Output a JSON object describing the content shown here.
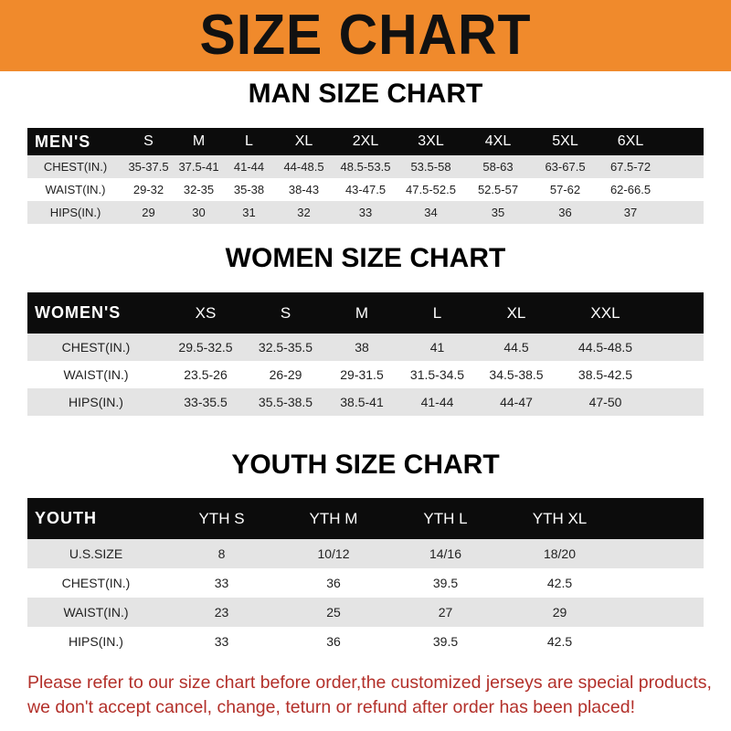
{
  "title": "SIZE CHART",
  "colors": {
    "banner": "#f08a2c",
    "header_row": "#0c0c0c",
    "stripe": "#e4e4e4",
    "notice": "#b3302a"
  },
  "men": {
    "title": "MAN SIZE CHART",
    "header": "MEN'S",
    "sizes": [
      "S",
      "M",
      "L",
      "XL",
      "2XL",
      "3XL",
      "4XL",
      "5XL",
      "6XL"
    ],
    "rows": [
      {
        "label": "CHEST(IN.)",
        "values": [
          "35-37.5",
          "37.5-41",
          "41-44",
          "44-48.5",
          "48.5-53.5",
          "53.5-58",
          "58-63",
          "63-67.5",
          "67.5-72"
        ]
      },
      {
        "label": "WAIST(IN.)",
        "values": [
          "29-32",
          "32-35",
          "35-38",
          "38-43",
          "43-47.5",
          "47.5-52.5",
          "52.5-57",
          "57-62",
          "62-66.5"
        ]
      },
      {
        "label": "HIPS(IN.)",
        "values": [
          "29",
          "30",
          "31",
          "32",
          "33",
          "34",
          "35",
          "36",
          "37"
        ]
      }
    ]
  },
  "women": {
    "title": "WOMEN SIZE CHART",
    "header": "WOMEN'S",
    "sizes": [
      "XS",
      "S",
      "M",
      "L",
      "XL",
      "XXL"
    ],
    "rows": [
      {
        "label": "CHEST(IN.)",
        "values": [
          "29.5-32.5",
          "32.5-35.5",
          "38",
          "41",
          "44.5",
          "44.5-48.5"
        ]
      },
      {
        "label": "WAIST(IN.)",
        "values": [
          "23.5-26",
          "26-29",
          "29-31.5",
          "31.5-34.5",
          "34.5-38.5",
          "38.5-42.5"
        ]
      },
      {
        "label": "HIPS(IN.)",
        "values": [
          "33-35.5",
          "35.5-38.5",
          "38.5-41",
          "41-44",
          "44-47",
          "47-50"
        ]
      }
    ]
  },
  "youth": {
    "title": "YOUTH SIZE CHART",
    "header": "YOUTH",
    "sizes": [
      "YTH S",
      "YTH M",
      "YTH L",
      "YTH XL"
    ],
    "rows": [
      {
        "label": "U.S.SIZE",
        "values": [
          "8",
          "10/12",
          "14/16",
          "18/20"
        ]
      },
      {
        "label": "CHEST(IN.)",
        "values": [
          "33",
          "36",
          "39.5",
          "42.5"
        ]
      },
      {
        "label": "WAIST(IN.)",
        "values": [
          "23",
          "25",
          "27",
          "29"
        ]
      },
      {
        "label": "HIPS(IN.)",
        "values": [
          "33",
          "36",
          "39.5",
          "42.5"
        ]
      }
    ]
  },
  "notice": [
    "Please refer to our size chart before order,the customized jerseys are special products,",
    "we don't accept cancel, change, teturn or refund after order has been placed!"
  ]
}
